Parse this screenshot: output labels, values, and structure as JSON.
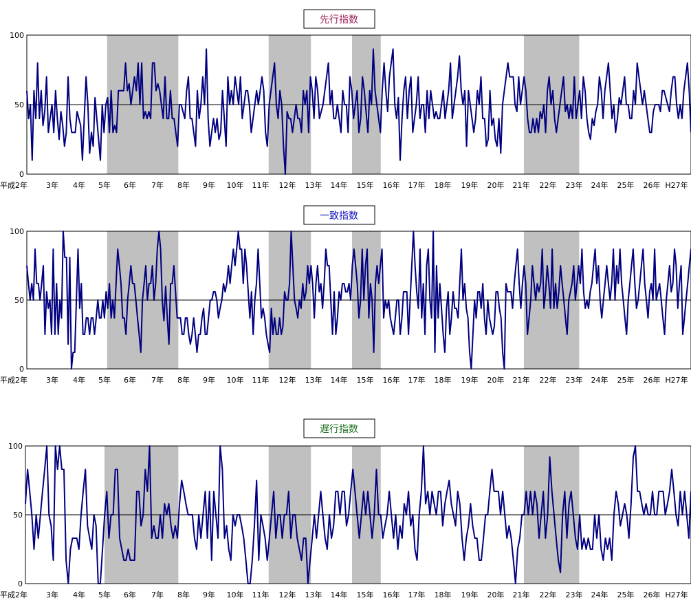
{
  "chart_data": [
    {
      "type": "line",
      "title": "先行指数",
      "title_color": "#a0245a",
      "line_color": "#000080",
      "recession_color": "#c0c0c0",
      "ylim": [
        0,
        100
      ],
      "yticks": [
        "0",
        "50",
        "100"
      ],
      "reference_line": 50,
      "x_tick_labels": [
        "平成2年",
        "3年",
        "4年",
        "5年",
        "6年",
        "7年",
        "8年",
        "9年",
        "10年",
        "11年",
        "12年",
        "13年",
        "14年",
        "15年",
        "16年",
        "17年",
        "18年",
        "19年",
        "20年",
        "21年",
        "22年",
        "23年",
        "24年",
        "25年",
        "26年",
        "H27年"
      ],
      "recession_shading": [
        [
          3.1,
          5.8
        ],
        [
          9.3,
          10.9
        ],
        [
          12.5,
          13.6
        ],
        [
          19.1,
          21.2
        ]
      ],
      "values": [
        60,
        40,
        50,
        10,
        60,
        40,
        80,
        40,
        60,
        35,
        45,
        70,
        30,
        40,
        50,
        30,
        60,
        40,
        25,
        45,
        35,
        20,
        30,
        70,
        40,
        30,
        30,
        30,
        45,
        40,
        35,
        10,
        40,
        70,
        50,
        15,
        30,
        20,
        55,
        40,
        25,
        10,
        50,
        30,
        50,
        55,
        30,
        60,
        30,
        35,
        30,
        60,
        60,
        60,
        60,
        80,
        60,
        65,
        50,
        60,
        70,
        60,
        80,
        50,
        80,
        40,
        45,
        40,
        45,
        40,
        80,
        80,
        60,
        65,
        60,
        50,
        40,
        70,
        40,
        40,
        60,
        40,
        40,
        30,
        20,
        50,
        50,
        45,
        40,
        60,
        70,
        40,
        40,
        30,
        20,
        60,
        40,
        50,
        70,
        50,
        90,
        40,
        20,
        30,
        40,
        30,
        40,
        25,
        30,
        60,
        40,
        20,
        70,
        50,
        60,
        50,
        70,
        60,
        50,
        70,
        40,
        50,
        60,
        60,
        50,
        30,
        40,
        50,
        60,
        50,
        60,
        70,
        60,
        30,
        20,
        50,
        60,
        70,
        80,
        50,
        40,
        60,
        50,
        20,
        0,
        45,
        40,
        40,
        30,
        40,
        50,
        40,
        40,
        30,
        60,
        50,
        60,
        30,
        70,
        60,
        40,
        70,
        60,
        40,
        45,
        50,
        60,
        70,
        80,
        50,
        60,
        40,
        40,
        50,
        40,
        30,
        60,
        50,
        50,
        30,
        70,
        60,
        40,
        50,
        60,
        30,
        40,
        70,
        60,
        45,
        30,
        60,
        50,
        90,
        60,
        50,
        40,
        30,
        60,
        80,
        60,
        45,
        70,
        80,
        90,
        50,
        40,
        55,
        10,
        40,
        60,
        70,
        40,
        60,
        70,
        30,
        40,
        50,
        70,
        40,
        50,
        50,
        30,
        60,
        40,
        60,
        50,
        40,
        45,
        40,
        40,
        50,
        60,
        40,
        50,
        60,
        80,
        40,
        50,
        60,
        70,
        85,
        60,
        50,
        60,
        20,
        60,
        50,
        40,
        30,
        40,
        60,
        50,
        70,
        40,
        40,
        20,
        25,
        60,
        35,
        40,
        25,
        20,
        40,
        15,
        50,
        60,
        70,
        80,
        70,
        70,
        70,
        50,
        45,
        70,
        50,
        60,
        70,
        60,
        40,
        30,
        30,
        40,
        30,
        40,
        30,
        45,
        40,
        50,
        30,
        60,
        70,
        50,
        60,
        40,
        30,
        40,
        50,
        60,
        70,
        45,
        50,
        40,
        50,
        40,
        70,
        40,
        50,
        60,
        40,
        70,
        60,
        40,
        30,
        25,
        40,
        35,
        45,
        50,
        70,
        60,
        40,
        60,
        70,
        80,
        60,
        40,
        50,
        30,
        40,
        55,
        50,
        60,
        70,
        50,
        50,
        40,
        40,
        60,
        50,
        80,
        70,
        60,
        50,
        60,
        50,
        40,
        30,
        30,
        45,
        50,
        50,
        50,
        45,
        60,
        60,
        55,
        50,
        45,
        60,
        70,
        70,
        50,
        40,
        50,
        40,
        60,
        70,
        80,
        60,
        30
      ]
    },
    {
      "type": "line",
      "title": "一致指数",
      "title_color": "#1010c0",
      "line_color": "#000080",
      "recession_color": "#c0c0c0",
      "ylim": [
        0,
        100
      ],
      "yticks": [
        "0",
        "50",
        "100"
      ],
      "reference_line": 50,
      "x_tick_labels": [
        "平成2年",
        "3年",
        "4年",
        "5年",
        "6年",
        "7年",
        "8年",
        "9年",
        "10年",
        "11年",
        "12年",
        "13年",
        "14年",
        "15年",
        "16年",
        "17年",
        "18年",
        "19年",
        "20年",
        "21年",
        "22年",
        "23年",
        "24年",
        "25年",
        "26年",
        "H27年"
      ],
      "recession_shading": [
        [
          3.1,
          5.8
        ],
        [
          9.3,
          10.9
        ],
        [
          12.5,
          13.6
        ],
        [
          19.1,
          21.2
        ]
      ],
      "values": [
        75,
        62,
        50,
        62,
        50,
        87,
        62,
        62,
        50,
        62,
        75,
        25,
        56,
        44,
        50,
        25,
        87,
        25,
        62,
        25,
        50,
        37,
        100,
        81,
        81,
        18,
        81,
        0,
        12,
        12,
        50,
        87,
        44,
        62,
        25,
        25,
        37,
        37,
        25,
        37,
        37,
        25,
        37,
        50,
        37,
        37,
        50,
        37,
        56,
        44,
        62,
        37,
        50,
        37,
        62,
        87,
        75,
        62,
        37,
        37,
        25,
        50,
        62,
        75,
        62,
        62,
        50,
        37,
        25,
        12,
        50,
        62,
        75,
        50,
        62,
        62,
        75,
        50,
        62,
        87,
        100,
        87,
        50,
        35,
        60,
        37,
        18,
        62,
        62,
        75,
        56,
        37,
        37,
        37,
        25,
        25,
        37,
        37,
        25,
        18,
        25,
        37,
        25,
        12,
        25,
        25,
        37,
        44,
        25,
        25,
        37,
        50,
        50,
        56,
        56,
        50,
        37,
        44,
        50,
        62,
        56,
        62,
        75,
        62,
        75,
        87,
        75,
        87,
        100,
        87,
        87,
        62,
        87,
        75,
        56,
        37,
        56,
        25,
        50,
        62,
        87,
        62,
        37,
        44,
        37,
        25,
        18,
        12,
        44,
        25,
        37,
        25,
        25,
        37,
        25,
        31,
        56,
        50,
        50,
        62,
        100,
        75,
        50,
        44,
        37,
        50,
        44,
        62,
        50,
        56,
        75,
        62,
        75,
        62,
        37,
        62,
        75,
        56,
        62,
        44,
        62,
        87,
        75,
        75,
        50,
        25,
        56,
        25,
        37,
        56,
        50,
        62,
        62,
        56,
        56,
        62,
        50,
        75,
        87,
        75,
        62,
        37,
        50,
        87,
        50,
        75,
        87,
        37,
        62,
        50,
        12,
        62,
        75,
        62,
        75,
        87,
        37,
        50,
        44,
        50,
        37,
        31,
        25,
        37,
        50,
        50,
        25,
        37,
        56,
        56,
        56,
        25,
        50,
        75,
        100,
        75,
        56,
        44,
        87,
        37,
        62,
        25,
        75,
        87,
        50,
        37,
        100,
        12,
        75,
        37,
        62,
        44,
        25,
        12,
        44,
        56,
        25,
        37,
        56,
        44,
        44,
        37,
        62,
        87,
        50,
        62,
        44,
        37,
        12,
        0,
        25,
        50,
        37,
        56,
        56,
        44,
        62,
        37,
        25,
        50,
        37,
        31,
        25,
        31,
        56,
        56,
        44,
        37,
        12,
        0,
        62,
        56,
        56,
        56,
        44,
        62,
        75,
        87,
        62,
        44,
        62,
        75,
        62,
        25,
        37,
        50,
        75,
        62,
        50,
        62,
        56,
        62,
        87,
        44,
        56,
        75,
        62,
        44,
        87,
        44,
        62,
        44,
        56,
        75,
        62,
        50,
        37,
        25,
        50,
        56,
        62,
        75,
        50,
        62,
        75,
        62,
        87,
        56,
        44,
        50,
        44,
        56,
        62,
        75,
        87,
        62,
        75,
        50,
        37,
        50,
        62,
        75,
        62,
        50,
        62,
        87,
        50,
        75,
        62,
        87,
        62,
        50,
        37,
        25,
        50,
        62,
        75,
        87,
        62,
        44,
        50,
        62,
        75,
        87,
        62,
        50,
        37,
        56,
        62,
        50,
        87,
        50,
        56,
        62,
        50,
        37,
        25,
        50,
        62,
        75,
        56,
        62,
        87,
        75,
        44,
        62,
        75,
        25,
        37,
        50,
        62,
        75,
        87
      ]
    },
    {
      "type": "line",
      "title": "遅行指数",
      "title_color": "#207020",
      "line_color": "#000080",
      "recession_color": "#c0c0c0",
      "ylim": [
        0,
        100
      ],
      "yticks": [
        "0",
        "50",
        "100"
      ],
      "reference_line": 50,
      "x_tick_labels": [
        "平成2年",
        "3年",
        "4年",
        "5年",
        "6年",
        "7年",
        "8年",
        "9年",
        "10年",
        "11年",
        "12年",
        "13年",
        "14年",
        "15年",
        "16年",
        "17年",
        "18年",
        "19年",
        "20年",
        "21年",
        "22年",
        "23年",
        "24年",
        "25年",
        "26年",
        "H27年"
      ],
      "recession_shading": [
        [
          3.0,
          5.8
        ],
        [
          9.3,
          10.9
        ],
        [
          12.5,
          13.6
        ],
        [
          19.1,
          21.2
        ]
      ],
      "values": [
        58,
        83,
        67,
        50,
        25,
        50,
        33,
        50,
        67,
        83,
        100,
        50,
        42,
        17,
        100,
        83,
        100,
        83,
        83,
        17,
        0,
        25,
        33,
        33,
        33,
        25,
        50,
        67,
        83,
        42,
        33,
        25,
        50,
        42,
        0,
        0,
        25,
        50,
        67,
        33,
        50,
        50,
        83,
        83,
        33,
        25,
        17,
        17,
        25,
        17,
        17,
        17,
        67,
        67,
        42,
        50,
        83,
        67,
        100,
        33,
        42,
        33,
        33,
        50,
        33,
        58,
        50,
        58,
        42,
        33,
        42,
        33,
        58,
        75,
        67,
        58,
        50,
        50,
        50,
        33,
        25,
        50,
        33,
        50,
        67,
        33,
        67,
        17,
        67,
        50,
        33,
        100,
        83,
        33,
        42,
        25,
        17,
        50,
        42,
        50,
        50,
        42,
        33,
        17,
        0,
        0,
        17,
        42,
        75,
        17,
        50,
        42,
        33,
        17,
        33,
        50,
        67,
        33,
        50,
        50,
        33,
        50,
        50,
        67,
        33,
        50,
        50,
        33,
        25,
        17,
        33,
        33,
        0,
        17,
        33,
        50,
        33,
        50,
        67,
        50,
        33,
        25,
        50,
        33,
        42,
        67,
        67,
        50,
        67,
        67,
        42,
        50,
        67,
        83,
        67,
        50,
        33,
        50,
        67,
        50,
        67,
        50,
        33,
        50,
        83,
        50,
        50,
        33,
        42,
        50,
        67,
        50,
        33,
        50,
        25,
        42,
        33,
        58,
        50,
        67,
        42,
        50,
        25,
        17,
        50,
        67,
        100,
        58,
        67,
        50,
        67,
        58,
        50,
        67,
        67,
        42,
        58,
        67,
        75,
        58,
        50,
        42,
        67,
        58,
        33,
        17,
        33,
        42,
        58,
        42,
        33,
        33,
        17,
        17,
        33,
        50,
        50,
        67,
        83,
        67,
        67,
        67,
        50,
        67,
        50,
        33,
        42,
        33,
        17,
        0,
        25,
        33,
        50,
        50,
        67,
        50,
        67,
        50,
        67,
        58,
        33,
        50,
        67,
        33,
        50,
        92,
        67,
        50,
        33,
        17,
        8,
        50,
        67,
        33,
        58,
        67,
        50,
        33,
        25,
        50,
        25,
        33,
        25,
        33,
        25,
        25,
        50,
        33,
        50,
        25,
        17,
        33,
        25,
        33,
        17,
        50,
        67,
        58,
        42,
        50,
        58,
        50,
        33,
        58,
        92,
        100,
        67,
        67,
        58,
        50,
        58,
        50,
        50,
        67,
        50,
        50,
        67,
        67,
        67,
        50,
        58,
        67,
        83,
        67,
        50,
        42,
        67,
        50,
        67,
        50,
        33,
        67
      ]
    }
  ]
}
